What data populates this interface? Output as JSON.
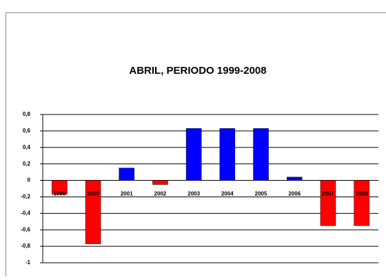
{
  "chart_data": {
    "type": "bar",
    "title": "ABRIL, PERIODO 1999-2008",
    "categories": [
      "1999",
      "2000",
      "2001",
      "2002",
      "2003",
      "2004",
      "2005",
      "2006",
      "2007",
      "2008"
    ],
    "values": [
      -0.17,
      -0.77,
      0.15,
      -0.05,
      0.63,
      0.63,
      0.63,
      0.04,
      -0.55,
      -0.55
    ],
    "colors": [
      "#ff0000",
      "#ff0000",
      "#0000ff",
      "#ff0000",
      "#0000ff",
      "#0000ff",
      "#0000ff",
      "#0000ff",
      "#ff0000",
      "#ff0000"
    ],
    "ylim": [
      -1,
      0.8
    ],
    "yticks": [
      {
        "value": 0.8,
        "label": "0,8"
      },
      {
        "value": 0.6,
        "label": "0,6"
      },
      {
        "value": 0.4,
        "label": "0,4"
      },
      {
        "value": 0.2,
        "label": "0,2"
      },
      0,
      {
        "value": -0.2,
        "label": "-0,2"
      },
      {
        "value": -0.4,
        "label": "-0,4"
      },
      {
        "value": -0.6,
        "label": "-0,6"
      },
      {
        "value": -0.8,
        "label": "-0,8"
      },
      -1
    ],
    "grid": true
  }
}
